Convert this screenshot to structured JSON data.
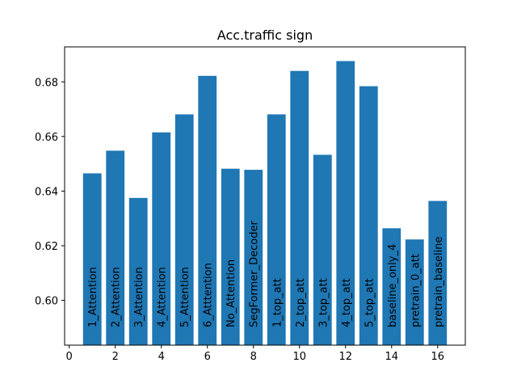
{
  "chart_data": {
    "type": "bar",
    "title": "Acc.traffic sign",
    "xlabel": "",
    "ylabel": "",
    "color": "#1f77b4",
    "x": [
      1,
      2,
      3,
      4,
      5,
      6,
      7,
      8,
      9,
      10,
      11,
      12,
      13,
      14,
      15,
      16
    ],
    "bar_labels": [
      "1_Attention",
      "2_Attention",
      "3_Attention",
      "4_Attention",
      "5_Attention",
      "6_Atttention",
      "No_Attention",
      "SegFormer_Decoder",
      "1_top_att",
      "2_top_att",
      "3_top_att",
      "4_top_att",
      "5_top_att",
      "baseline_only_4",
      "pretrain_0_att",
      "pretrain_baseline"
    ],
    "values": [
      0.6465,
      0.6548,
      0.6375,
      0.6615,
      0.6681,
      0.6822,
      0.6482,
      0.6478,
      0.6681,
      0.684,
      0.6533,
      0.6876,
      0.6784,
      0.6264,
      0.6223,
      0.6364
    ],
    "xlim": [
      -0.2,
      17.2
    ],
    "ylim": [
      0.5836,
      0.6928
    ],
    "xticks": [
      0,
      2,
      4,
      6,
      8,
      10,
      12,
      14,
      16
    ],
    "yticks": [
      0.6,
      0.62,
      0.64,
      0.66,
      0.68
    ],
    "ytick_labels": [
      "0.60",
      "0.62",
      "0.64",
      "0.66",
      "0.68"
    ],
    "grid": false,
    "legend": "none"
  }
}
